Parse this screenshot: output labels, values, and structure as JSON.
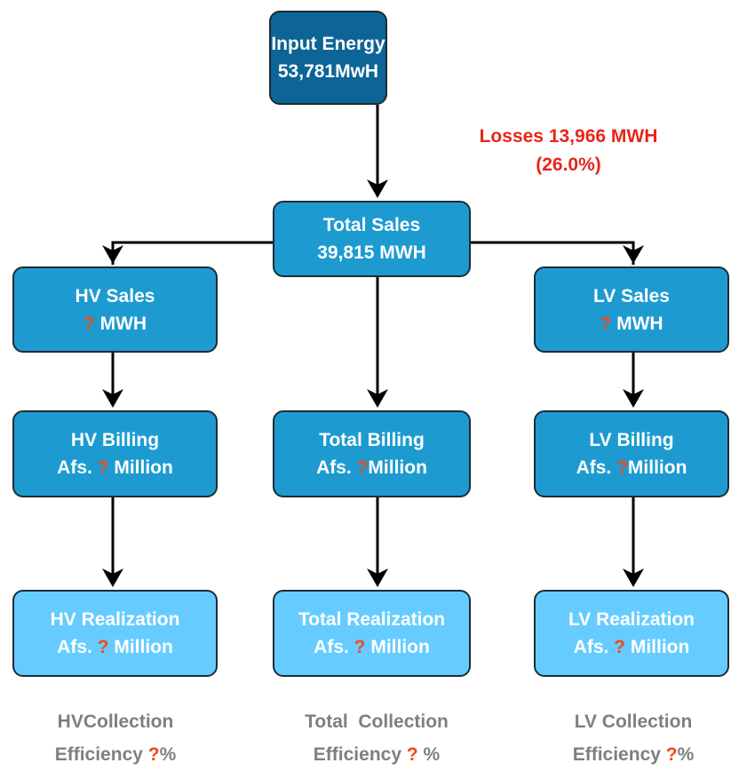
{
  "nodes": [
    {
      "lines": [
        [
          "Input Energy"
        ],
        [
          "53,781MwH"
        ]
      ]
    },
    {
      "lines": [
        [
          "Total Sales"
        ],
        [
          "39,815 MWH"
        ]
      ]
    },
    {
      "lines": [
        [
          "HV Sales"
        ],
        [
          "?",
          " MWH"
        ]
      ]
    },
    {
      "lines": [
        [
          "LV Sales"
        ],
        [
          "?",
          " MWH"
        ]
      ]
    },
    {
      "lines": [
        [
          "HV Billing"
        ],
        [
          "Afs. ",
          "?",
          " Million"
        ]
      ]
    },
    {
      "lines": [
        [
          "Total Billing"
        ],
        [
          "Afs. ",
          "?",
          "Million"
        ]
      ]
    },
    {
      "lines": [
        [
          "LV Billing"
        ],
        [
          "Afs. ",
          "?",
          "Million"
        ]
      ]
    },
    {
      "lines": [
        [
          "HV Realization"
        ],
        [
          "Afs. ",
          "?",
          " Million"
        ]
      ]
    },
    {
      "lines": [
        [
          "Total Realization"
        ],
        [
          "Afs. ",
          "?",
          " Million"
        ]
      ]
    },
    {
      "lines": [
        [
          "LV Realization"
        ],
        [
          "Afs. ",
          "?",
          " Million"
        ]
      ]
    }
  ],
  "losses": {
    "lines": [
      "Losses 13,966 MWH",
      "(26.0%)"
    ]
  },
  "efficiency": [
    {
      "lines": [
        [
          "HVCollection"
        ],
        [
          "Efficiency ",
          "?",
          "%"
        ]
      ]
    },
    {
      "lines": [
        [
          "Total  Collection"
        ],
        [
          "Efficiency ",
          "?",
          " %"
        ]
      ]
    },
    {
      "lines": [
        [
          "LV Collection"
        ],
        [
          "Efficiency ",
          "?",
          "%"
        ]
      ]
    }
  ]
}
